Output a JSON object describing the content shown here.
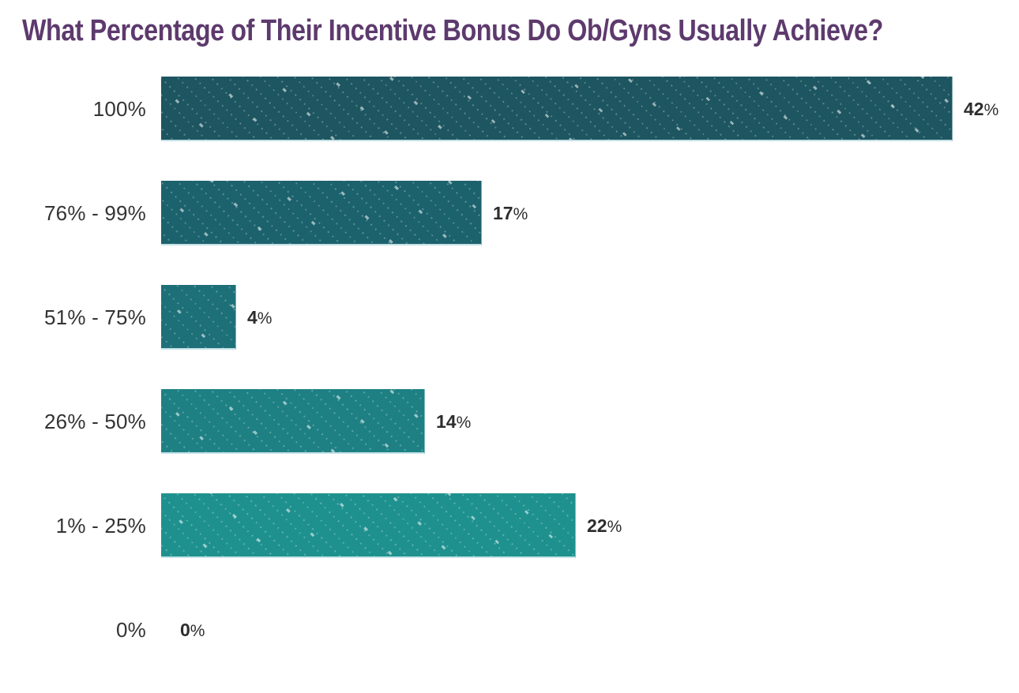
{
  "title": "What Percentage of Their Incentive Bonus Do Ob/Gyns Usually Achieve?",
  "percent_sign": "%",
  "colors": {
    "title": "#5d3a6d",
    "category_label": "#333333",
    "value_label": "#2d2d2d",
    "background": "#ffffff",
    "bar_edge_highlight": "#cde9ed",
    "bar_colors": [
      "#1d5560",
      "#1c626d",
      "#1d6f78",
      "#1e8083",
      "#1e918e",
      "#1e918e"
    ]
  },
  "chart_data": {
    "type": "bar",
    "orientation": "horizontal",
    "title": "What Percentage of Their Incentive Bonus Do Ob/Gyns Usually Achieve?",
    "categories": [
      "100%",
      "76% - 99%",
      "51% - 75%",
      "26% - 50%",
      "1% - 25%",
      "0%"
    ],
    "values": [
      42,
      17,
      4,
      14,
      22,
      0
    ],
    "value_nums": [
      "42",
      "17",
      "4",
      "14",
      "22",
      "0"
    ],
    "value_labels": [
      "42%",
      "17%",
      "4%",
      "14%",
      "22%",
      "0%"
    ],
    "xlabel": "",
    "ylabel": "",
    "xlim": [
      0,
      42
    ],
    "grid": false,
    "legend": "none",
    "bar_texture": "diagonal-dotted-lines"
  }
}
